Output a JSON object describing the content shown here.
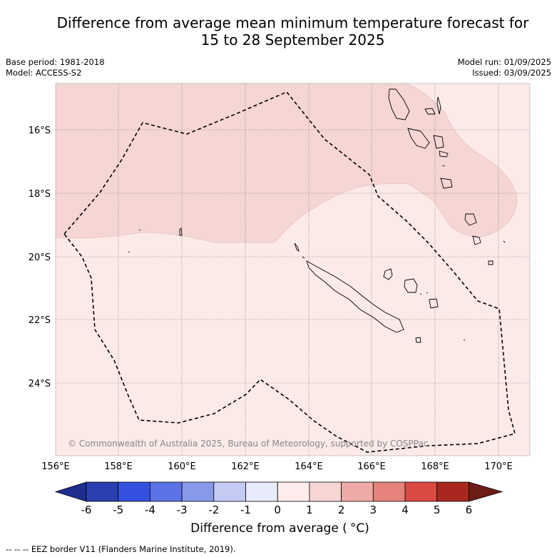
{
  "header": {
    "title_line1": "Difference from average mean minimum temperature forecast for",
    "title_line2": "15 to 28 September 2025",
    "base_period": "Base period: 1981-2018",
    "model": "Model: ACCESS-S2",
    "model_run": "Model run: 01/09/2025",
    "issued": "Issued: 03/09/2025"
  },
  "map": {
    "longitude_ticks": [
      "156°E",
      "158°E",
      "160°E",
      "162°E",
      "164°E",
      "166°E",
      "168°E",
      "170°E"
    ],
    "latitude_ticks": [
      "16°S",
      "18°S",
      "20°S",
      "22°S",
      "24°S"
    ],
    "copyright": "© Commonwealth of Australia 2025, Bureau of Meteorology, supported by COSPPac",
    "shading": [
      {
        "category": "0 to 1",
        "color": "#fbeae8",
        "region": "southern part of the domain"
      },
      {
        "category": "1 to 2",
        "color": "#f5d6d4",
        "region": "northern part of the domain"
      }
    ]
  },
  "colorbar": {
    "labels": [
      "-6",
      "-5",
      "-4",
      "-3",
      "-2",
      "-1",
      "0",
      "1",
      "2",
      "3",
      "4",
      "5",
      "6"
    ],
    "colors": [
      "#1f2d8f",
      "#2c3fb0",
      "#3350e0",
      "#5b73e6",
      "#8899ea",
      "#c3caf3",
      "#e8ebfa",
      "#fdeceb",
      "#f5d6d4",
      "#eeaaa6",
      "#e5827c",
      "#d94a42",
      "#a8281f",
      "#6e1c17"
    ],
    "title": "Difference from average (",
    "title_unit": "°C)"
  },
  "footer": {
    "legend_line": "--  --  -- EEZ border V11 (Flanders Marine Institute, 2019)."
  }
}
